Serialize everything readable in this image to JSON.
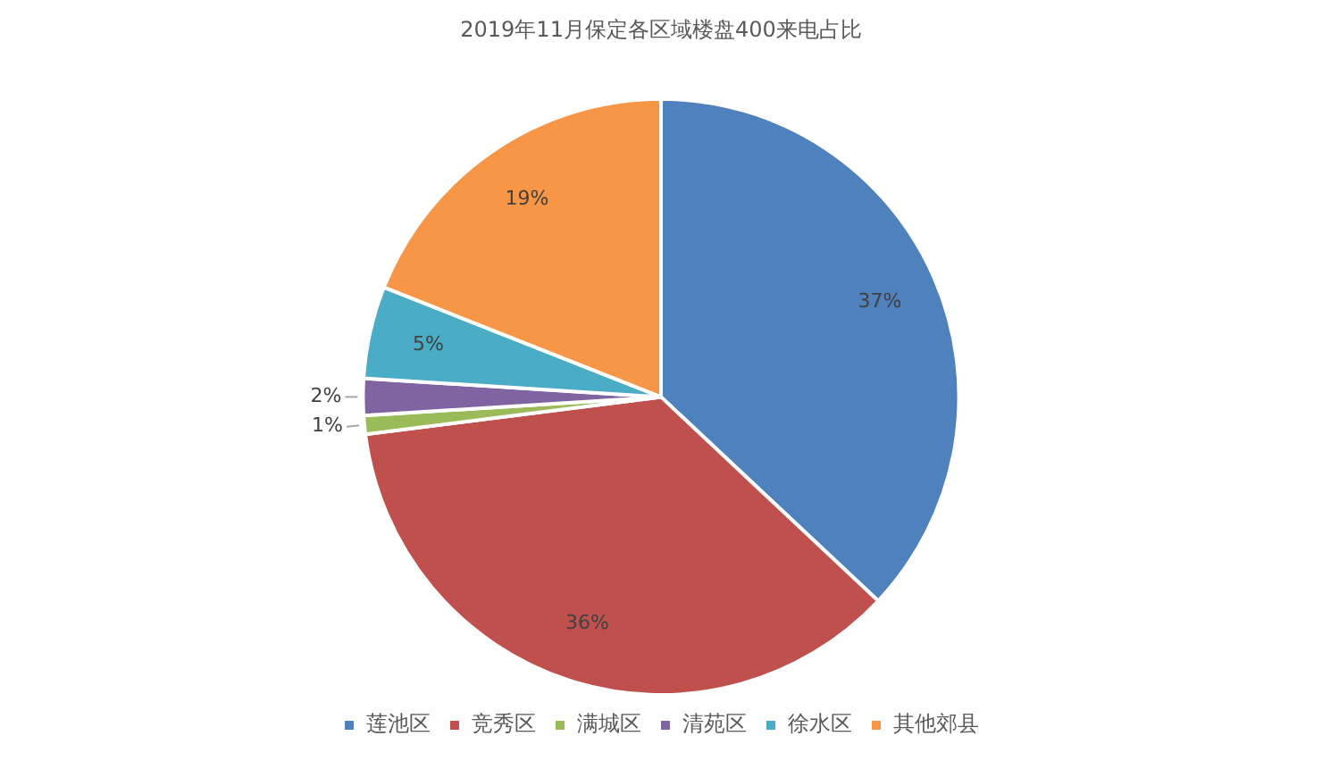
{
  "chart_data": {
    "type": "pie",
    "title": "2019年11月保定各区域楼盘400来电占比",
    "categories": [
      "莲池区",
      "竞秀区",
      "满城区",
      "清苑区",
      "徐水区",
      "其他郊县"
    ],
    "values": [
      37,
      36,
      1,
      2,
      5,
      19
    ],
    "colors": [
      "#4f81bd",
      "#c0504d",
      "#9bbb59",
      "#8064a2",
      "#4bacc6",
      "#f79646"
    ],
    "value_labels": [
      "37%",
      "36%",
      "1%",
      "2%",
      "5%",
      "19%"
    ],
    "legend": "bottom"
  }
}
